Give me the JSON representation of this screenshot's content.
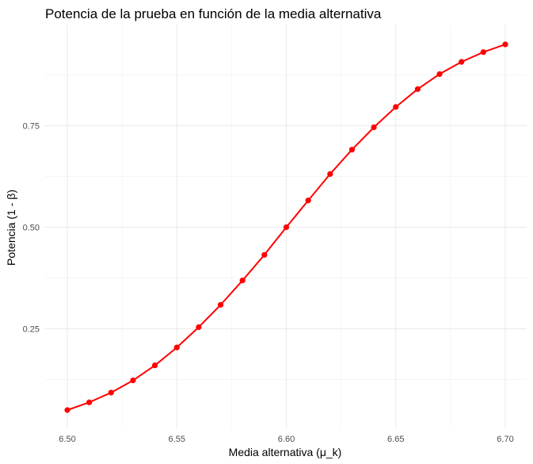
{
  "chart_data": {
    "type": "line",
    "title": "Potencia de la prueba en función de la media alternativa",
    "xlabel": "Media alternativa (μ_k)",
    "ylabel": "Potencia (1 - β)",
    "xlim": [
      6.5,
      6.7
    ],
    "ylim": [
      0.05,
      0.95
    ],
    "x_ticks": [
      6.5,
      6.55,
      6.6,
      6.65,
      6.7
    ],
    "x_tick_labels": [
      "6.50",
      "6.55",
      "6.60",
      "6.65",
      "6.70"
    ],
    "y_ticks": [
      0.25,
      0.5,
      0.75
    ],
    "y_tick_labels": [
      "0.25",
      "0.50",
      "0.75"
    ],
    "grid": true,
    "legend": "none",
    "series": [
      {
        "color": "#ff0000",
        "x": [
          6.5,
          6.51,
          6.52,
          6.53,
          6.54,
          6.55,
          6.56,
          6.57,
          6.58,
          6.59,
          6.6,
          6.61,
          6.62,
          6.63,
          6.64,
          6.65,
          6.66,
          6.67,
          6.68,
          6.69,
          6.7
        ],
        "y": [
          0.05,
          0.069,
          0.093,
          0.123,
          0.16,
          0.204,
          0.254,
          0.309,
          0.369,
          0.432,
          0.5,
          0.566,
          0.631,
          0.691,
          0.746,
          0.796,
          0.84,
          0.877,
          0.907,
          0.931,
          0.95
        ]
      }
    ]
  }
}
